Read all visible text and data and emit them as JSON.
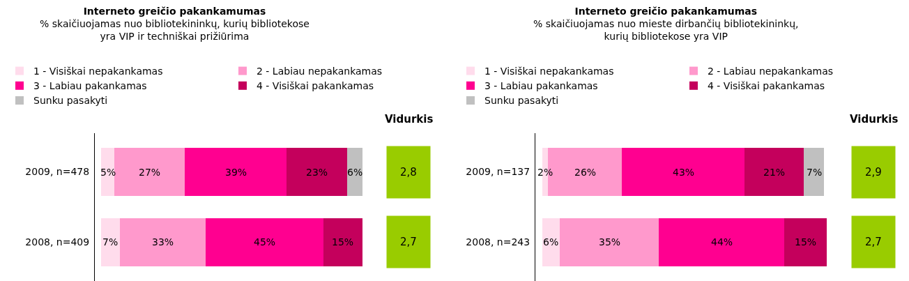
{
  "chart_data": [
    {
      "type": "bar",
      "orientation": "horizontal",
      "stacked": true,
      "title": "Interneto greičio pakankamumas",
      "subtitle": "% skaičiuojamas nuo bibliotekininkų, kurių bibliotekose yra VIP ir techniškai prižiūrima",
      "categories": [
        "2009, n=478",
        "2008, n=409"
      ],
      "legend": "top",
      "annotations": [
        "Vidurkis",
        "2,8",
        "2,7"
      ],
      "series": [
        {
          "name": "1 - Visiškai nepakankamas",
          "color": "#ffdcec",
          "values": [
            5,
            7
          ],
          "value_labels": [
            "5%",
            "7%"
          ]
        },
        {
          "name": "2 - Labiau nepakankamas",
          "color": "#ff99cc",
          "values": [
            27,
            33
          ],
          "value_labels": [
            "27%",
            "33%"
          ]
        },
        {
          "name": "3 - Labiau pakankamas",
          "color": "#ff0090",
          "values": [
            39,
            45
          ],
          "value_labels": [
            "39%",
            "45%"
          ]
        },
        {
          "name": "4 - Visiškai pakankamas",
          "color": "#c4005c",
          "values": [
            23,
            15
          ],
          "value_labels": [
            "23%",
            "15%"
          ]
        },
        {
          "name": "Sunku pasakyti",
          "color": "#c0c0c0",
          "values": [
            6,
            null
          ],
          "value_labels": [
            "6%",
            null
          ]
        }
      ]
    },
    {
      "type": "bar",
      "orientation": "horizontal",
      "stacked": true,
      "title": "Interneto greičio pakankamumas",
      "subtitle": "% skaičiuojamas nuo mieste dirbančių bibliotekininkų, kurių bibliotekose yra VIP",
      "categories": [
        "2009, n=137",
        "2008, n=243"
      ],
      "legend": "top",
      "annotations": [
        "Vidurkis",
        "2,9",
        "2,7"
      ],
      "series": [
        {
          "name": "1 - Visiškai nepakankamas",
          "color": "#ffdcec",
          "values": [
            2,
            6
          ],
          "value_labels": [
            "2%",
            "6%"
          ]
        },
        {
          "name": "2 - Labiau nepakankamas",
          "color": "#ff99cc",
          "values": [
            26,
            35
          ],
          "value_labels": [
            "26%",
            "35%"
          ]
        },
        {
          "name": "3 - Labiau pakankamas",
          "color": "#ff0090",
          "values": [
            43,
            44
          ],
          "value_labels": [
            "43%",
            "44%"
          ]
        },
        {
          "name": "4 - Visiškai pakankamas",
          "color": "#c4005c",
          "values": [
            21,
            15
          ],
          "value_labels": [
            "21%",
            "15%"
          ]
        },
        {
          "name": "Sunku pasakyti",
          "color": "#c0c0c0",
          "values": [
            7,
            null
          ],
          "value_labels": [
            "7%",
            null
          ]
        }
      ]
    }
  ]
}
